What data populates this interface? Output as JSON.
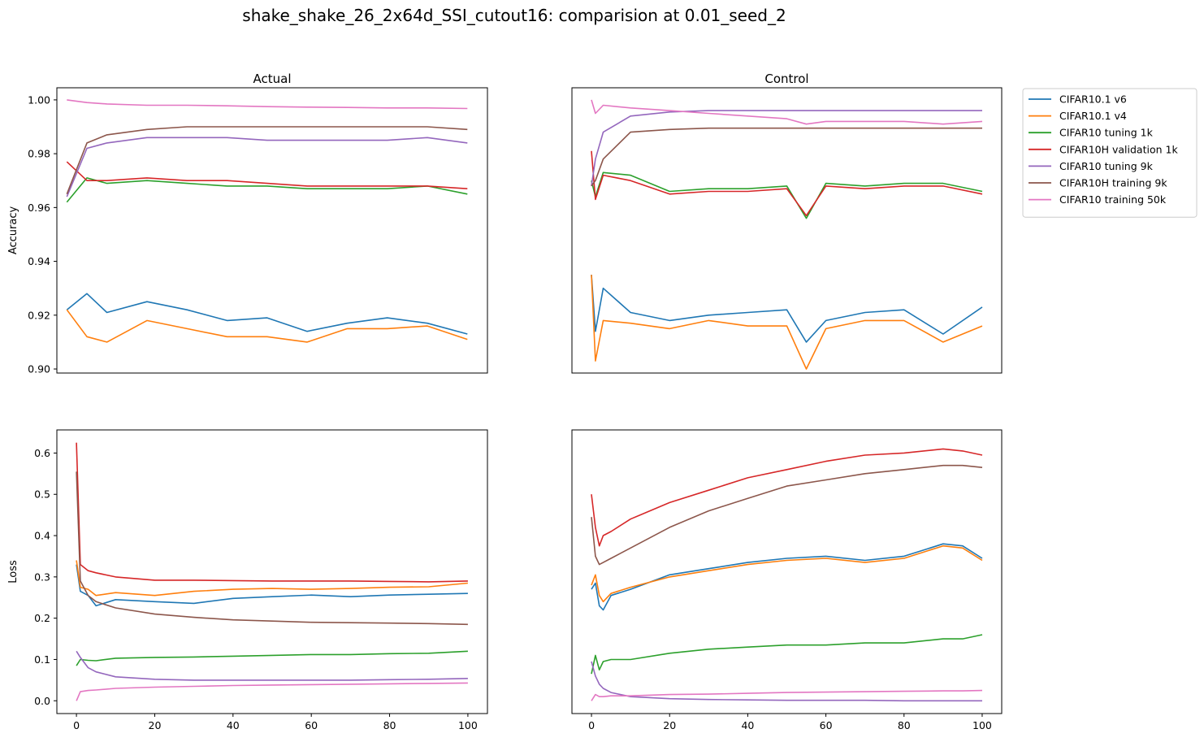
{
  "figure": {
    "title": "shake_shake_26_2x64d_SSI_cutout16: comparision at 0.01_seed_2"
  },
  "legend": {
    "placement": "outside-right",
    "entries": [
      {
        "name": "CIFAR10.1 v6",
        "color": "#1f77b4"
      },
      {
        "name": "CIFAR10.1 v4",
        "color": "#ff7f0e"
      },
      {
        "name": "CIFAR10 tuning 1k",
        "color": "#2ca02c"
      },
      {
        "name": "CIFAR10H validation 1k",
        "color": "#d62728"
      },
      {
        "name": "CIFAR10 tuning 9k",
        "color": "#9467bd"
      },
      {
        "name": "CIFAR10H training 9k",
        "color": "#8c564b"
      },
      {
        "name": "CIFAR10 training 50k",
        "color": "#e377c2"
      }
    ]
  },
  "chart_data": [
    {
      "type": "line",
      "panel": "top-left",
      "title": "Actual",
      "ylabel": "Accuracy",
      "xlim": [
        -2.5,
        105
      ],
      "ylim": [
        0.8985,
        1.0045
      ],
      "x_ticks_shown": false,
      "yticks": [
        "0.90",
        "0.92",
        "0.94",
        "0.96",
        "0.98",
        "1.00"
      ],
      "grid": false,
      "series": [
        {
          "name": "CIFAR10.1 v6",
          "x": [
            0,
            5,
            10,
            20,
            30,
            40,
            50,
            60,
            70,
            80,
            90,
            100
          ],
          "y": [
            0.922,
            0.928,
            0.921,
            0.925,
            0.922,
            0.918,
            0.919,
            0.914,
            0.917,
            0.919,
            0.917,
            0.913
          ]
        },
        {
          "name": "CIFAR10.1 v4",
          "x": [
            0,
            5,
            10,
            20,
            30,
            40,
            50,
            60,
            70,
            80,
            90,
            100
          ],
          "y": [
            0.922,
            0.912,
            0.91,
            0.918,
            0.915,
            0.912,
            0.912,
            0.91,
            0.915,
            0.915,
            0.916,
            0.911
          ]
        },
        {
          "name": "CIFAR10 tuning 1k",
          "x": [
            0,
            5,
            10,
            20,
            30,
            40,
            50,
            60,
            70,
            80,
            90,
            100
          ],
          "y": [
            0.962,
            0.971,
            0.969,
            0.97,
            0.969,
            0.968,
            0.968,
            0.967,
            0.967,
            0.967,
            0.968,
            0.965
          ]
        },
        {
          "name": "CIFAR10H validation 1k",
          "x": [
            0,
            5,
            10,
            20,
            30,
            40,
            50,
            60,
            70,
            80,
            90,
            100
          ],
          "y": [
            0.977,
            0.97,
            0.97,
            0.971,
            0.97,
            0.97,
            0.969,
            0.968,
            0.968,
            0.968,
            0.968,
            0.967
          ]
        },
        {
          "name": "CIFAR10 tuning 9k",
          "x": [
            0,
            5,
            10,
            20,
            30,
            40,
            50,
            60,
            70,
            80,
            90,
            100
          ],
          "y": [
            0.964,
            0.982,
            0.984,
            0.986,
            0.986,
            0.986,
            0.985,
            0.985,
            0.985,
            0.985,
            0.986,
            0.984
          ]
        },
        {
          "name": "CIFAR10H training 9k",
          "x": [
            0,
            5,
            10,
            20,
            30,
            40,
            50,
            60,
            70,
            80,
            90,
            100
          ],
          "y": [
            0.965,
            0.984,
            0.987,
            0.989,
            0.99,
            0.99,
            0.99,
            0.99,
            0.99,
            0.99,
            0.99,
            0.989
          ]
        },
        {
          "name": "CIFAR10 training 50k",
          "x": [
            0,
            5,
            10,
            20,
            30,
            40,
            50,
            60,
            70,
            80,
            90,
            100
          ],
          "y": [
            1.0,
            0.999,
            0.9985,
            0.998,
            0.998,
            0.9978,
            0.9975,
            0.9973,
            0.9972,
            0.997,
            0.997,
            0.9968
          ]
        }
      ]
    },
    {
      "type": "line",
      "panel": "top-right",
      "title": "Control",
      "xlim": [
        -5,
        105
      ],
      "ylim": [
        0.8985,
        1.0045
      ],
      "x_ticks_shown": false,
      "y_ticks_shown": false,
      "grid": false,
      "series": [
        {
          "name": "CIFAR10.1 v6",
          "x": [
            0,
            1,
            3,
            10,
            20,
            30,
            40,
            50,
            55,
            60,
            70,
            80,
            90,
            100
          ],
          "y": [
            0.935,
            0.914,
            0.93,
            0.921,
            0.918,
            0.92,
            0.921,
            0.922,
            0.91,
            0.918,
            0.921,
            0.922,
            0.913,
            0.923
          ]
        },
        {
          "name": "CIFAR10.1 v4",
          "x": [
            0,
            1,
            3,
            10,
            20,
            30,
            40,
            50,
            55,
            60,
            70,
            80,
            90,
            100
          ],
          "y": [
            0.935,
            0.903,
            0.918,
            0.917,
            0.915,
            0.918,
            0.916,
            0.916,
            0.9,
            0.915,
            0.918,
            0.918,
            0.91,
            0.916
          ]
        },
        {
          "name": "CIFAR10 tuning 1k",
          "x": [
            0,
            1,
            3,
            10,
            20,
            30,
            40,
            50,
            55,
            60,
            70,
            80,
            90,
            100
          ],
          "y": [
            0.97,
            0.964,
            0.973,
            0.972,
            0.966,
            0.967,
            0.967,
            0.968,
            0.956,
            0.969,
            0.968,
            0.969,
            0.969,
            0.966
          ]
        },
        {
          "name": "CIFAR10H validation 1k",
          "x": [
            0,
            1,
            3,
            10,
            20,
            30,
            40,
            50,
            55,
            60,
            70,
            80,
            90,
            100
          ],
          "y": [
            0.981,
            0.963,
            0.972,
            0.97,
            0.965,
            0.966,
            0.966,
            0.967,
            0.957,
            0.968,
            0.967,
            0.968,
            0.968,
            0.965
          ]
        },
        {
          "name": "CIFAR10 tuning 9k",
          "x": [
            0,
            1,
            3,
            10,
            20,
            30,
            40,
            50,
            55,
            60,
            70,
            80,
            90,
            100
          ],
          "y": [
            0.968,
            0.978,
            0.988,
            0.994,
            0.9955,
            0.996,
            0.996,
            0.996,
            0.996,
            0.996,
            0.996,
            0.996,
            0.996,
            0.996
          ]
        },
        {
          "name": "CIFAR10H training 9k",
          "x": [
            0,
            1,
            3,
            10,
            20,
            30,
            40,
            50,
            55,
            60,
            70,
            80,
            90,
            100
          ],
          "y": [
            0.968,
            0.97,
            0.978,
            0.988,
            0.989,
            0.9895,
            0.9895,
            0.9895,
            0.9895,
            0.9895,
            0.9895,
            0.9895,
            0.9895,
            0.9895
          ]
        },
        {
          "name": "CIFAR10 training 50k",
          "x": [
            0,
            1,
            3,
            10,
            20,
            30,
            40,
            50,
            55,
            60,
            70,
            80,
            90,
            100
          ],
          "y": [
            1.0,
            0.995,
            0.998,
            0.997,
            0.996,
            0.995,
            0.994,
            0.993,
            0.991,
            0.992,
            0.992,
            0.992,
            0.991,
            0.992
          ]
        }
      ]
    },
    {
      "type": "line",
      "panel": "bottom-left",
      "ylabel": "Loss",
      "xlim": [
        -5,
        105
      ],
      "ylim": [
        -0.031,
        0.656
      ],
      "xticks": [
        "0",
        "20",
        "40",
        "60",
        "80",
        "100"
      ],
      "yticks": [
        "0.0",
        "0.1",
        "0.2",
        "0.3",
        "0.4",
        "0.5",
        "0.6"
      ],
      "grid": false,
      "series": [
        {
          "name": "CIFAR10.1 v6",
          "x": [
            0,
            1,
            3,
            5,
            10,
            20,
            30,
            40,
            50,
            60,
            70,
            80,
            90,
            100
          ],
          "y": [
            0.33,
            0.265,
            0.255,
            0.23,
            0.245,
            0.24,
            0.236,
            0.248,
            0.252,
            0.256,
            0.252,
            0.256,
            0.258,
            0.26
          ]
        },
        {
          "name": "CIFAR10.1 v4",
          "x": [
            0,
            1,
            3,
            5,
            10,
            20,
            30,
            40,
            50,
            60,
            70,
            80,
            90,
            100
          ],
          "y": [
            0.34,
            0.275,
            0.27,
            0.255,
            0.262,
            0.255,
            0.265,
            0.27,
            0.272,
            0.27,
            0.272,
            0.275,
            0.276,
            0.285
          ]
        },
        {
          "name": "CIFAR10 tuning 1k",
          "x": [
            0,
            1,
            3,
            5,
            10,
            20,
            30,
            40,
            50,
            60,
            70,
            80,
            90,
            100
          ],
          "y": [
            0.085,
            0.1,
            0.098,
            0.097,
            0.103,
            0.105,
            0.106,
            0.108,
            0.11,
            0.112,
            0.112,
            0.114,
            0.115,
            0.12
          ]
        },
        {
          "name": "CIFAR10H validation 1k",
          "x": [
            0,
            1,
            3,
            5,
            10,
            20,
            30,
            40,
            50,
            60,
            70,
            80,
            90,
            100
          ],
          "y": [
            0.625,
            0.33,
            0.315,
            0.31,
            0.3,
            0.292,
            0.292,
            0.291,
            0.29,
            0.29,
            0.29,
            0.289,
            0.288,
            0.29
          ]
        },
        {
          "name": "CIFAR10 tuning 9k",
          "x": [
            0,
            1,
            3,
            5,
            10,
            20,
            30,
            40,
            50,
            60,
            70,
            80,
            90,
            100
          ],
          "y": [
            0.12,
            0.105,
            0.08,
            0.07,
            0.058,
            0.052,
            0.05,
            0.05,
            0.05,
            0.05,
            0.05,
            0.051,
            0.052,
            0.054
          ]
        },
        {
          "name": "CIFAR10H training 9k",
          "x": [
            0,
            1,
            3,
            5,
            10,
            20,
            30,
            40,
            50,
            60,
            70,
            80,
            90,
            100
          ],
          "y": [
            0.555,
            0.29,
            0.255,
            0.24,
            0.225,
            0.21,
            0.202,
            0.196,
            0.193,
            0.19,
            0.189,
            0.188,
            0.187,
            0.185
          ]
        },
        {
          "name": "CIFAR10 training 50k",
          "x": [
            0,
            1,
            3,
            5,
            10,
            20,
            30,
            40,
            50,
            60,
            70,
            80,
            90,
            100
          ],
          "y": [
            0.0,
            0.022,
            0.025,
            0.026,
            0.03,
            0.033,
            0.035,
            0.037,
            0.038,
            0.039,
            0.04,
            0.041,
            0.042,
            0.043
          ]
        }
      ]
    },
    {
      "type": "line",
      "panel": "bottom-right",
      "xlim": [
        -5,
        105
      ],
      "ylim": [
        -0.031,
        0.656
      ],
      "xticks": [
        "0",
        "20",
        "40",
        "60",
        "80",
        "100"
      ],
      "y_ticks_shown": false,
      "grid": false,
      "series": [
        {
          "name": "CIFAR10.1 v6",
          "x": [
            0,
            1,
            2,
            3,
            5,
            10,
            20,
            30,
            40,
            50,
            60,
            70,
            80,
            90,
            95,
            100
          ],
          "y": [
            0.27,
            0.285,
            0.23,
            0.22,
            0.255,
            0.27,
            0.305,
            0.32,
            0.335,
            0.345,
            0.35,
            0.34,
            0.35,
            0.38,
            0.375,
            0.345
          ]
        },
        {
          "name": "CIFAR10.1 v4",
          "x": [
            0,
            1,
            2,
            3,
            5,
            10,
            20,
            30,
            40,
            50,
            60,
            70,
            80,
            90,
            95,
            100
          ],
          "y": [
            0.28,
            0.305,
            0.255,
            0.24,
            0.26,
            0.275,
            0.3,
            0.315,
            0.33,
            0.34,
            0.345,
            0.335,
            0.345,
            0.375,
            0.37,
            0.34
          ]
        },
        {
          "name": "CIFAR10 tuning 1k",
          "x": [
            0,
            1,
            2,
            3,
            5,
            10,
            20,
            30,
            40,
            50,
            60,
            70,
            80,
            90,
            95,
            100
          ],
          "y": [
            0.065,
            0.11,
            0.075,
            0.095,
            0.1,
            0.1,
            0.115,
            0.125,
            0.13,
            0.135,
            0.135,
            0.14,
            0.14,
            0.15,
            0.15,
            0.16
          ]
        },
        {
          "name": "CIFAR10H validation 1k",
          "x": [
            0,
            1,
            2,
            3,
            5,
            10,
            20,
            30,
            40,
            50,
            60,
            70,
            80,
            90,
            95,
            100
          ],
          "y": [
            0.5,
            0.42,
            0.375,
            0.4,
            0.41,
            0.44,
            0.48,
            0.51,
            0.54,
            0.56,
            0.58,
            0.595,
            0.6,
            0.61,
            0.605,
            0.595
          ]
        },
        {
          "name": "CIFAR10 tuning 9k",
          "x": [
            0,
            1,
            2,
            3,
            5,
            10,
            20,
            30,
            40,
            50,
            60,
            70,
            80,
            90,
            95,
            100
          ],
          "y": [
            0.095,
            0.06,
            0.04,
            0.03,
            0.02,
            0.01,
            0.005,
            0.003,
            0.002,
            0.001,
            0.001,
            0.001,
            0.0,
            0.0,
            0.0,
            0.0
          ]
        },
        {
          "name": "CIFAR10H training 9k",
          "x": [
            0,
            1,
            2,
            3,
            5,
            10,
            20,
            30,
            40,
            50,
            60,
            70,
            80,
            90,
            95,
            100
          ],
          "y": [
            0.445,
            0.35,
            0.33,
            0.335,
            0.345,
            0.37,
            0.42,
            0.46,
            0.49,
            0.52,
            0.535,
            0.55,
            0.56,
            0.57,
            0.57,
            0.565
          ]
        },
        {
          "name": "CIFAR10 training 50k",
          "x": [
            0,
            1,
            2,
            3,
            5,
            10,
            20,
            30,
            40,
            50,
            60,
            70,
            80,
            90,
            95,
            100
          ],
          "y": [
            0.0,
            0.015,
            0.01,
            0.01,
            0.012,
            0.012,
            0.015,
            0.016,
            0.018,
            0.02,
            0.021,
            0.022,
            0.023,
            0.024,
            0.024,
            0.025
          ]
        }
      ]
    }
  ]
}
